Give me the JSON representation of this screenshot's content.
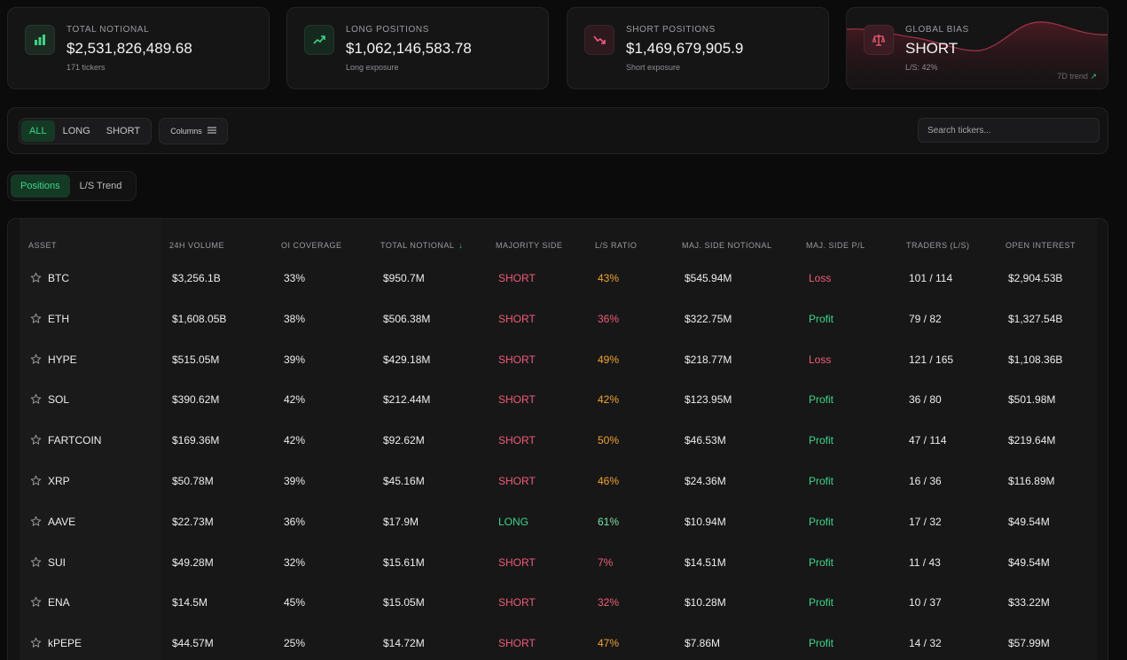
{
  "cards": [
    {
      "label": "TOTAL NOTIONAL",
      "value": "$2,531,826,489.68",
      "sub": "171 tickers",
      "icon": "bar-chart-icon"
    },
    {
      "label": "LONG POSITIONS",
      "value": "$1,062,146,583.78",
      "sub": "Long exposure",
      "icon": "trending-up-icon"
    },
    {
      "label": "SHORT POSITIONS",
      "value": "$1,469,679,905.9",
      "sub": "Short exposure",
      "icon": "trending-down-icon"
    },
    {
      "label": "GLOBAL BIAS",
      "value": "SHORT",
      "sub": "L/S: 42%",
      "icon": "scale-icon",
      "trend_label": "7D trend"
    }
  ],
  "filters": {
    "options": [
      "ALL",
      "LONG",
      "SHORT"
    ],
    "active": "ALL",
    "columns_label": "Columns"
  },
  "search": {
    "placeholder": "Search tickers..."
  },
  "views": {
    "options": [
      "Positions",
      "L/S Trend"
    ],
    "active": "Positions"
  },
  "table": {
    "headers": {
      "asset": "ASSET",
      "volume": "24H VOLUME",
      "oi": "OI COVERAGE",
      "notional": "TOTAL NOTIONAL",
      "side": "MAJORITY SIDE",
      "ratio": "L/S RATIO",
      "maj_notional": "MAJ. SIDE NOTIONAL",
      "pl": "MAJ. SIDE P/L",
      "traders": "TRADERS (L/S)",
      "open_interest": "OPEN INTEREST"
    },
    "sort_indicator": "↓",
    "rows": [
      {
        "asset": "BTC",
        "volume": "$3,256.1B",
        "oi": "33%",
        "notional": "$950.7M",
        "side": "SHORT",
        "ratio": "43%",
        "maj_notional": "$545.94M",
        "pl": "Loss",
        "traders": "101 / 114",
        "open_interest": "$2,904.53B"
      },
      {
        "asset": "ETH",
        "volume": "$1,608.05B",
        "oi": "38%",
        "notional": "$506.38M",
        "side": "SHORT",
        "ratio": "36%",
        "maj_notional": "$322.75M",
        "pl": "Profit",
        "traders": "79 / 82",
        "open_interest": "$1,327.54B"
      },
      {
        "asset": "HYPE",
        "volume": "$515.05M",
        "oi": "39%",
        "notional": "$429.18M",
        "side": "SHORT",
        "ratio": "49%",
        "maj_notional": "$218.77M",
        "pl": "Loss",
        "traders": "121 / 165",
        "open_interest": "$1,108.36B"
      },
      {
        "asset": "SOL",
        "volume": "$390.62M",
        "oi": "42%",
        "notional": "$212.44M",
        "side": "SHORT",
        "ratio": "42%",
        "maj_notional": "$123.95M",
        "pl": "Profit",
        "traders": "36 / 80",
        "open_interest": "$501.98M"
      },
      {
        "asset": "FARTCOIN",
        "volume": "$169.36M",
        "oi": "42%",
        "notional": "$92.62M",
        "side": "SHORT",
        "ratio": "50%",
        "maj_notional": "$46.53M",
        "pl": "Profit",
        "traders": "47 / 114",
        "open_interest": "$219.64M"
      },
      {
        "asset": "XRP",
        "volume": "$50.78M",
        "oi": "39%",
        "notional": "$45.16M",
        "side": "SHORT",
        "ratio": "46%",
        "maj_notional": "$24.36M",
        "pl": "Profit",
        "traders": "16 / 36",
        "open_interest": "$116.89M"
      },
      {
        "asset": "AAVE",
        "volume": "$22.73M",
        "oi": "36%",
        "notional": "$17.9M",
        "side": "LONG",
        "ratio": "61%",
        "maj_notional": "$10.94M",
        "pl": "Profit",
        "traders": "17 / 32",
        "open_interest": "$49.54M"
      },
      {
        "asset": "SUI",
        "volume": "$49.28M",
        "oi": "32%",
        "notional": "$15.61M",
        "side": "SHORT",
        "ratio": "7%",
        "maj_notional": "$14.51M",
        "pl": "Profit",
        "traders": "11 / 43",
        "open_interest": "$49.54M"
      },
      {
        "asset": "ENA",
        "volume": "$14.5M",
        "oi": "45%",
        "notional": "$15.05M",
        "side": "SHORT",
        "ratio": "32%",
        "maj_notional": "$10.28M",
        "pl": "Profit",
        "traders": "10 / 37",
        "open_interest": "$33.22M"
      },
      {
        "asset": "kPEPE",
        "volume": "$44.57M",
        "oi": "25%",
        "notional": "$14.72M",
        "side": "SHORT",
        "ratio": "47%",
        "maj_notional": "$7.86M",
        "pl": "Profit",
        "traders": "14 / 32",
        "open_interest": "$57.99M"
      }
    ]
  },
  "colors": {
    "accent_green": "#3fd487",
    "short_red": "#f25c77",
    "warn_amber": "#f0a433",
    "background": "#0b0b0c"
  }
}
